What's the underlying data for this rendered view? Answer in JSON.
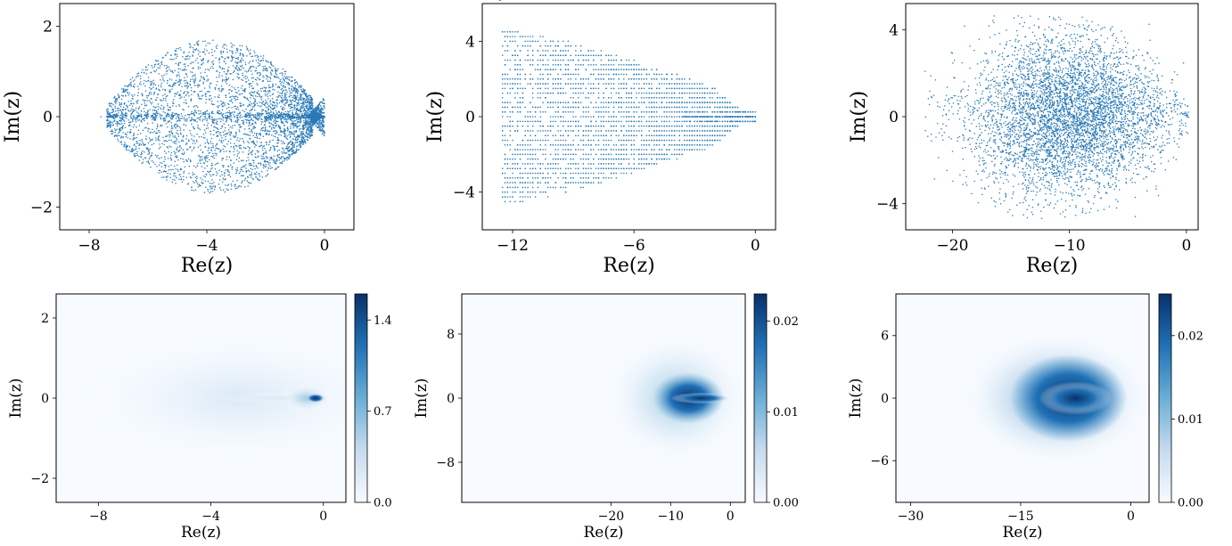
{
  "chart_data": [
    {
      "type": "scatter",
      "panel": "top-left",
      "xlabel": "Re(z)",
      "ylabel": "Im(z)",
      "xlim": [
        -9,
        1
      ],
      "ylim": [
        -2.5,
        2.5
      ],
      "xticks": [
        -8,
        -4,
        0
      ],
      "yticks": [
        -2,
        0,
        2
      ],
      "xtick_labels": [
        "−8",
        "−4",
        "0"
      ],
      "ytick_labels": [
        "−2",
        "0",
        "2"
      ],
      "point_color": "#1f77b4",
      "description_of_cloud": {
        "x_min": -7.5,
        "x_max": 0,
        "im_max": 1.7,
        "dense_near": 0
      }
    },
    {
      "type": "scatter",
      "panel": "top-middle",
      "xlabel": "Re(z)",
      "ylabel": "Im(z)",
      "xlim": [
        -13.5,
        1
      ],
      "ylim": [
        -6,
        6
      ],
      "xticks": [
        -12,
        -6,
        0
      ],
      "yticks": [
        -4,
        0,
        4
      ],
      "xtick_labels": [
        "−12",
        "−6",
        "0"
      ],
      "ytick_labels": [
        "−4",
        "0",
        "4"
      ],
      "point_color": "#1f77b4"
    },
    {
      "type": "scatter",
      "panel": "top-right",
      "xlabel": "Re(z)",
      "ylabel": "Im(z)",
      "xlim": [
        -24,
        1
      ],
      "ylim": [
        -5.2,
        5.2
      ],
      "xticks": [
        -20,
        -10,
        0
      ],
      "yticks": [
        -4,
        0,
        4
      ],
      "xtick_labels": [
        "−20",
        "−10",
        "0"
      ],
      "ytick_labels": [
        "−4",
        "0",
        "4"
      ],
      "point_color": "#1f77b4"
    },
    {
      "type": "heatmap",
      "panel": "bottom-left",
      "xlabel": "Re(z)",
      "ylabel": "Im(z)",
      "xlim": [
        -9.5,
        0.8
      ],
      "ylim": [
        -2.6,
        2.6
      ],
      "xticks": [
        -8,
        -4,
        0
      ],
      "yticks": [
        -2,
        0,
        2
      ],
      "xtick_labels": [
        "−8",
        "−4",
        "0"
      ],
      "ytick_labels": [
        "−2",
        "0",
        "2"
      ],
      "colorbar": {
        "min": 0.0,
        "max": 1.6,
        "ticks": [
          0.0,
          0.7,
          1.4
        ],
        "tick_labels": [
          "0.0",
          "0.7",
          "1.4"
        ]
      },
      "peak": {
        "re": -0.3,
        "im": 0
      }
    },
    {
      "type": "heatmap",
      "panel": "bottom-middle",
      "xlabel": "Re(z)",
      "ylabel": "Im(z)",
      "xlim": [
        -45,
        2.5
      ],
      "ylim": [
        -13,
        13
      ],
      "xticks": [
        -20,
        -10,
        0
      ],
      "yticks": [
        -8,
        0,
        8
      ],
      "xtick_labels": [
        "−20",
        "−10",
        "0"
      ],
      "ytick_labels": [
        "−8",
        "0",
        "8"
      ],
      "colorbar": {
        "min": 0.0,
        "max": 0.023,
        "ticks": [
          0.0,
          0.01,
          0.02
        ],
        "tick_labels": [
          "0.00",
          "0.01",
          "0.02"
        ]
      },
      "peak": {
        "re": -7,
        "im": 0
      }
    },
    {
      "type": "heatmap",
      "panel": "bottom-right",
      "xlabel": "Re(z)",
      "ylabel": "Im(z)",
      "xlim": [
        -32,
        2.5
      ],
      "ylim": [
        -10,
        10
      ],
      "xticks": [
        -30,
        -15,
        0
      ],
      "yticks": [
        -6,
        0,
        6
      ],
      "xtick_labels": [
        "−30",
        "−15",
        "0"
      ],
      "ytick_labels": [
        "−6",
        "0",
        "6"
      ],
      "colorbar": {
        "min": 0.0,
        "max": 0.025,
        "ticks": [
          0.0,
          0.01,
          0.02
        ],
        "tick_labels": [
          "0.00",
          "0.01",
          "0.02"
        ]
      },
      "peak": {
        "re": -8,
        "im": 0
      }
    }
  ]
}
